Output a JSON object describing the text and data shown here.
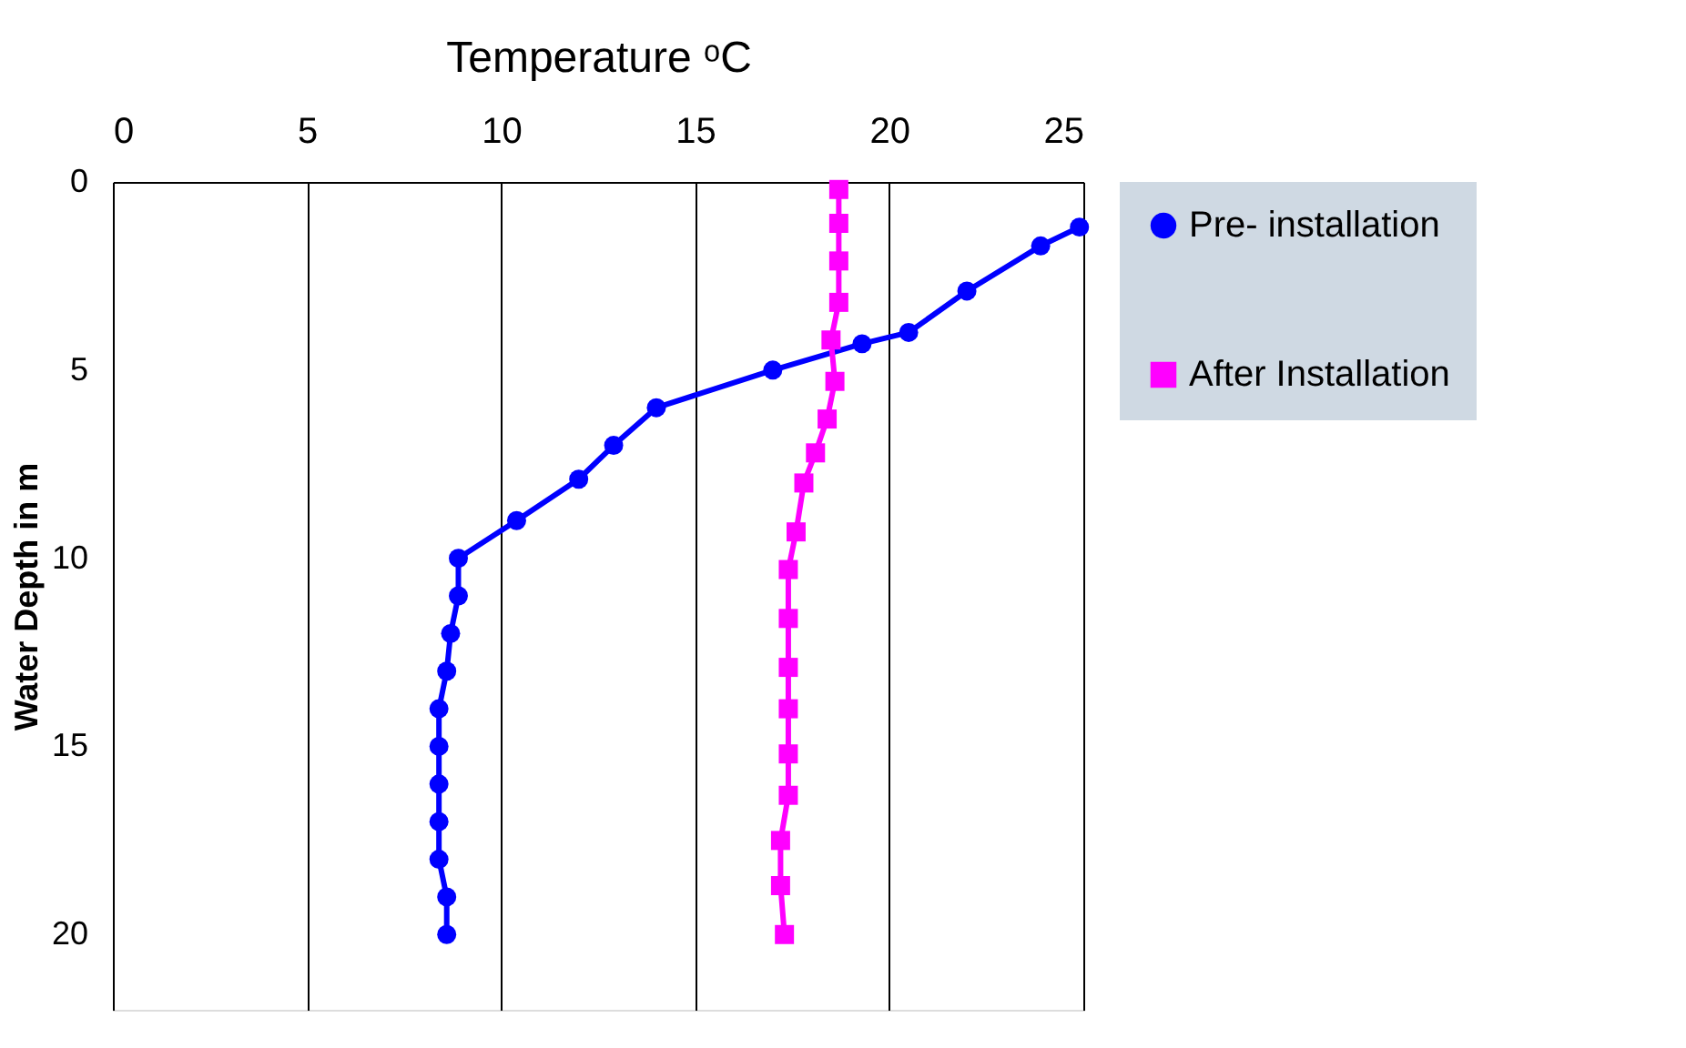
{
  "chart_data": {
    "type": "line",
    "xlabel": "Temperature ᵒC",
    "ylabel": "Water Depth in m",
    "xlim": [
      0,
      25
    ],
    "xticks": [
      0,
      5,
      10,
      15,
      20,
      25
    ],
    "ylim": [
      22,
      0
    ],
    "yticks": [
      0,
      5,
      10,
      15,
      20
    ],
    "grid": "x",
    "legend": "right",
    "marker": "circle",
    "line_style": "solid",
    "series": [
      {
        "name": "Pre- installation",
        "color": "#0000ff",
        "marker": "circle",
        "x": [
          24.9,
          23.9,
          22.0,
          20.5,
          19.3,
          17.0,
          14.0,
          12.9,
          12.0,
          10.4,
          8.9,
          8.9,
          8.7,
          8.6,
          8.4,
          8.4,
          8.4,
          8.4,
          8.4,
          8.6,
          8.6
        ],
        "values": [
          1.2,
          1.7,
          2.9,
          4.0,
          4.3,
          5.0,
          6.0,
          7.0,
          7.9,
          9.0,
          10.0,
          11.0,
          12.0,
          13.0,
          14.0,
          15.0,
          16.0,
          17.0,
          18.0,
          19.0,
          20.0
        ]
      },
      {
        "name": "After Installation",
        "color": "#ff00ff",
        "marker": "square",
        "x": [
          18.7,
          18.7,
          18.7,
          18.7,
          18.5,
          18.6,
          18.4,
          18.1,
          17.8,
          17.6,
          17.4,
          17.4,
          17.4,
          17.4,
          17.4,
          17.4,
          17.2,
          17.2,
          17.3
        ],
        "values": [
          0.2,
          1.1,
          2.1,
          3.2,
          4.2,
          5.3,
          6.3,
          7.2,
          8.0,
          9.3,
          10.3,
          11.6,
          12.9,
          14.0,
          15.2,
          16.3,
          17.5,
          18.7,
          20.0
        ]
      }
    ]
  }
}
